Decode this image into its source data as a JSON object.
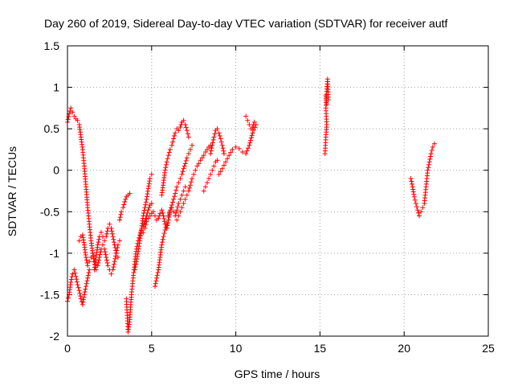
{
  "chart_data": {
    "type": "scatter",
    "title": "Day 260 of 2019, Sidereal Day-to-day VTEC variation (SDTVAR) for receiver autf",
    "xlabel": "GPS time / hours",
    "ylabel": "SDTVAR / TECUs",
    "xlim": [
      0,
      25
    ],
    "ylim": [
      -2,
      1.5
    ],
    "xticks": [
      "0",
      "5",
      "10",
      "15",
      "20",
      "25"
    ],
    "yticks": [
      "-2",
      "-1.5",
      "-1",
      "-0.5",
      "0",
      "0.5",
      "1",
      "1.5"
    ],
    "grid": true,
    "marker": "plus",
    "color": "#ff0000",
    "series": [
      {
        "name": "",
        "segments": [
          [
            [
              0.0,
              -1.58
            ],
            [
              0.1,
              -1.5
            ],
            [
              0.2,
              -1.35
            ],
            [
              0.3,
              -1.25
            ],
            [
              0.4,
              -1.2
            ],
            [
              0.5,
              -1.28
            ],
            [
              0.6,
              -1.38
            ],
            [
              0.7,
              -1.45
            ],
            [
              0.8,
              -1.55
            ],
            [
              0.9,
              -1.62
            ],
            [
              1.0,
              -1.5
            ],
            [
              1.1,
              -1.4
            ],
            [
              1.2,
              -1.3
            ],
            [
              1.3,
              -1.2
            ]
          ],
          [
            [
              0.0,
              0.58
            ],
            [
              0.1,
              0.68
            ],
            [
              0.2,
              0.75
            ],
            [
              0.3,
              0.7
            ],
            [
              0.4,
              0.65
            ],
            [
              0.5,
              0.62
            ],
            [
              0.6,
              0.6
            ],
            [
              0.7,
              0.55
            ],
            [
              0.8,
              0.4
            ],
            [
              0.9,
              0.25
            ],
            [
              1.0,
              0.05
            ],
            [
              1.1,
              -0.2
            ],
            [
              1.2,
              -0.45
            ],
            [
              1.3,
              -0.65
            ],
            [
              1.4,
              -0.85
            ],
            [
              1.5,
              -1.0
            ],
            [
              1.6,
              -1.1
            ]
          ],
          [
            [
              0.7,
              -0.85
            ],
            [
              0.8,
              -0.8
            ],
            [
              0.9,
              -0.78
            ],
            [
              1.0,
              -0.9
            ],
            [
              1.1,
              -1.05
            ],
            [
              1.2,
              -1.15
            ],
            [
              1.3,
              -1.1
            ],
            [
              1.4,
              -1.05
            ],
            [
              1.5,
              -1.0
            ],
            [
              1.6,
              -1.1
            ],
            [
              1.7,
              -1.2
            ],
            [
              1.8,
              -1.15
            ],
            [
              1.9,
              -1.05
            ],
            [
              2.0,
              -0.95
            ],
            [
              2.1,
              -0.9
            ],
            [
              2.2,
              -0.95
            ],
            [
              2.3,
              -1.05
            ],
            [
              2.4,
              -1.15
            ],
            [
              2.5,
              -1.2
            ],
            [
              2.6,
              -1.25
            ],
            [
              2.7,
              -1.2
            ],
            [
              2.8,
              -1.1
            ],
            [
              2.9,
              -1.0
            ],
            [
              3.0,
              -0.9
            ],
            [
              3.1,
              -0.85
            ]
          ],
          [
            [
              1.6,
              -1.2
            ],
            [
              1.7,
              -1.05
            ],
            [
              1.8,
              -0.9
            ],
            [
              1.9,
              -0.8
            ],
            [
              2.0,
              -0.75
            ],
            [
              2.1,
              -0.8
            ],
            [
              2.2,
              -0.85
            ],
            [
              2.3,
              -0.8
            ],
            [
              2.4,
              -0.7
            ],
            [
              2.5,
              -0.65
            ],
            [
              2.6,
              -0.7
            ],
            [
              2.7,
              -0.8
            ],
            [
              2.8,
              -0.9
            ],
            [
              2.9,
              -1.0
            ],
            [
              3.0,
              -1.05
            ]
          ],
          [
            [
              3.1,
              -0.6
            ],
            [
              3.2,
              -0.5
            ],
            [
              3.3,
              -0.45
            ],
            [
              3.4,
              -0.38
            ],
            [
              3.5,
              -0.32
            ],
            [
              3.6,
              -0.3
            ],
            [
              3.7,
              -0.28
            ]
          ],
          [
            [
              3.5,
              -1.55
            ],
            [
              3.55,
              -1.75
            ],
            [
              3.6,
              -1.95
            ],
            [
              3.7,
              -1.8
            ],
            [
              3.8,
              -1.5
            ],
            [
              3.9,
              -1.3
            ],
            [
              4.0,
              -1.1
            ],
            [
              4.1,
              -0.95
            ],
            [
              4.2,
              -0.85
            ],
            [
              4.3,
              -0.78
            ],
            [
              4.4,
              -0.72
            ],
            [
              4.5,
              -0.68
            ],
            [
              4.6,
              -0.62
            ],
            [
              4.7,
              -0.55
            ],
            [
              4.8,
              -0.48
            ],
            [
              4.9,
              -0.42
            ],
            [
              5.0,
              -0.4
            ]
          ],
          [
            [
              4.0,
              -1.2
            ],
            [
              4.1,
              -1.1
            ],
            [
              4.2,
              -0.98
            ],
            [
              4.3,
              -0.85
            ],
            [
              4.4,
              -0.7
            ],
            [
              4.5,
              -0.55
            ],
            [
              4.6,
              -0.45
            ],
            [
              4.7,
              -0.35
            ],
            [
              4.8,
              -0.22
            ],
            [
              4.9,
              -0.1
            ],
            [
              5.0,
              -0.05
            ]
          ],
          [
            [
              4.5,
              -0.75
            ],
            [
              4.6,
              -0.7
            ],
            [
              4.7,
              -0.62
            ],
            [
              4.8,
              -0.58
            ],
            [
              4.9,
              -0.55
            ],
            [
              5.0,
              -0.52
            ],
            [
              5.1,
              -0.5
            ],
            [
              5.2,
              -0.55
            ],
            [
              5.3,
              -0.6
            ],
            [
              5.4,
              -0.58
            ],
            [
              5.5,
              -0.52
            ],
            [
              5.6,
              -0.48
            ],
            [
              5.7,
              -0.55
            ],
            [
              5.8,
              -0.65
            ],
            [
              5.9,
              -0.7
            ],
            [
              6.0,
              -0.6
            ],
            [
              6.1,
              -0.5
            ],
            [
              6.2,
              -0.45
            ],
            [
              6.3,
              -0.5
            ],
            [
              6.4,
              -0.55
            ],
            [
              6.5,
              -0.48
            ],
            [
              6.6,
              -0.4
            ],
            [
              6.7,
              -0.35
            ],
            [
              6.8,
              -0.3
            ],
            [
              6.9,
              -0.25
            ],
            [
              7.0,
              -0.2
            ]
          ],
          [
            [
              5.2,
              -1.4
            ],
            [
              5.3,
              -1.3
            ],
            [
              5.4,
              -1.2
            ],
            [
              5.5,
              -1.05
            ],
            [
              5.6,
              -0.9
            ],
            [
              5.7,
              -0.8
            ],
            [
              5.8,
              -0.72
            ],
            [
              5.9,
              -0.65
            ]
          ],
          [
            [
              5.6,
              -0.3
            ],
            [
              5.7,
              -0.15
            ],
            [
              5.8,
              0.0
            ],
            [
              5.9,
              0.1
            ],
            [
              6.0,
              0.18
            ],
            [
              6.1,
              0.25
            ],
            [
              6.2,
              0.3
            ],
            [
              6.3,
              0.38
            ],
            [
              6.4,
              0.45
            ],
            [
              6.5,
              0.5
            ],
            [
              6.6,
              0.48
            ],
            [
              6.7,
              0.52
            ],
            [
              6.8,
              0.58
            ],
            [
              6.9,
              0.6
            ],
            [
              7.0,
              0.55
            ],
            [
              7.1,
              0.48
            ],
            [
              7.2,
              0.4
            ]
          ],
          [
            [
              6.0,
              -0.55
            ],
            [
              6.1,
              -0.48
            ],
            [
              6.2,
              -0.42
            ],
            [
              6.3,
              -0.35
            ],
            [
              6.4,
              -0.28
            ],
            [
              6.5,
              -0.2
            ],
            [
              6.6,
              -0.15
            ],
            [
              6.7,
              -0.1
            ],
            [
              6.8,
              -0.05
            ],
            [
              6.9,
              0.02
            ],
            [
              7.0,
              0.08
            ],
            [
              7.1,
              0.15
            ],
            [
              7.2,
              0.2
            ],
            [
              7.3,
              0.25
            ],
            [
              7.4,
              0.3
            ]
          ],
          [
            [
              6.5,
              -0.6
            ],
            [
              6.6,
              -0.55
            ],
            [
              6.7,
              -0.5
            ],
            [
              6.8,
              -0.45
            ],
            [
              6.9,
              -0.4
            ],
            [
              7.0,
              -0.35
            ],
            [
              7.1,
              -0.3
            ],
            [
              7.2,
              -0.25
            ],
            [
              7.3,
              -0.18
            ],
            [
              7.4,
              -0.1
            ],
            [
              7.5,
              -0.05
            ],
            [
              7.6,
              0.0
            ],
            [
              7.7,
              0.05
            ],
            [
              7.8,
              0.08
            ],
            [
              7.9,
              0.12
            ],
            [
              8.0,
              0.15
            ],
            [
              8.1,
              0.18
            ],
            [
              8.2,
              0.22
            ],
            [
              8.3,
              0.25
            ],
            [
              8.4,
              0.28
            ],
            [
              8.5,
              0.3
            ]
          ],
          [
            [
              8.1,
              -0.25
            ],
            [
              8.2,
              -0.2
            ],
            [
              8.3,
              -0.15
            ],
            [
              8.4,
              -0.1
            ],
            [
              8.5,
              -0.05
            ],
            [
              8.6,
              0.0
            ],
            [
              8.7,
              0.05
            ],
            [
              8.8,
              0.1
            ],
            [
              8.9,
              0.12
            ]
          ],
          [
            [
              8.5,
              0.2
            ],
            [
              8.6,
              0.3
            ],
            [
              8.7,
              0.4
            ],
            [
              8.8,
              0.48
            ],
            [
              8.9,
              0.5
            ],
            [
              9.0,
              0.45
            ],
            [
              9.1,
              0.38
            ],
            [
              9.2,
              0.3
            ],
            [
              9.3,
              0.2
            ]
          ],
          [
            [
              9.0,
              -0.05
            ],
            [
              9.2,
              0.02
            ],
            [
              9.4,
              0.1
            ],
            [
              9.6,
              0.18
            ],
            [
              9.8,
              0.25
            ],
            [
              10.0,
              0.28
            ],
            [
              10.2,
              0.26
            ],
            [
              10.4,
              0.22
            ],
            [
              10.6,
              0.2
            ],
            [
              10.8,
              0.3
            ],
            [
              11.0,
              0.45
            ],
            [
              11.2,
              0.55
            ]
          ],
          [
            [
              10.6,
              0.65
            ],
            [
              10.7,
              0.6
            ],
            [
              10.8,
              0.55
            ],
            [
              10.9,
              0.5
            ],
            [
              11.0,
              0.52
            ],
            [
              11.1,
              0.58
            ]
          ],
          [
            [
              15.3,
              0.2
            ],
            [
              15.35,
              0.4
            ],
            [
              15.4,
              0.55
            ],
            [
              15.35,
              0.75
            ],
            [
              15.4,
              0.95
            ],
            [
              15.45,
              1.1
            ],
            [
              15.5,
              0.85
            ],
            [
              15.4,
              0.8
            ],
            [
              15.35,
              0.9
            ]
          ],
          [
            [
              20.4,
              -0.1
            ],
            [
              20.5,
              -0.2
            ],
            [
              20.6,
              -0.32
            ],
            [
              20.7,
              -0.4
            ],
            [
              20.8,
              -0.48
            ],
            [
              20.9,
              -0.55
            ],
            [
              21.0,
              -0.5
            ],
            [
              21.1,
              -0.45
            ],
            [
              21.2,
              -0.4
            ],
            [
              21.3,
              -0.2
            ],
            [
              21.4,
              0.0
            ],
            [
              21.5,
              0.1
            ],
            [
              21.6,
              0.2
            ],
            [
              21.7,
              0.28
            ],
            [
              21.8,
              0.32
            ]
          ]
        ]
      }
    ]
  }
}
